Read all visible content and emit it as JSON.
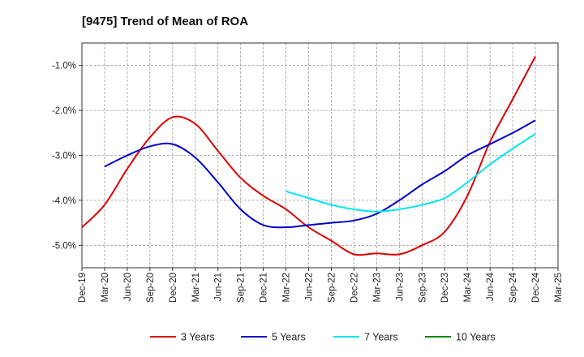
{
  "chart_data": {
    "type": "line",
    "title": "[9475]  Trend of Mean of ROA",
    "xlabel": "",
    "ylabel": "",
    "x": [
      "Dec-19",
      "Mar-20",
      "Jun-20",
      "Sep-20",
      "Dec-20",
      "Mar-21",
      "Jun-21",
      "Sep-21",
      "Dec-21",
      "Mar-22",
      "Jun-22",
      "Sep-22",
      "Dec-22",
      "Mar-23",
      "Jun-23",
      "Sep-23",
      "Dec-23",
      "Mar-24",
      "Jun-24",
      "Sep-24",
      "Dec-24",
      "Mar-25"
    ],
    "ylim": [
      -5.5,
      -0.5
    ],
    "yticks": [
      -1.0,
      -2.0,
      -3.0,
      -4.0,
      -5.0
    ],
    "ytick_labels": [
      "-1.0%",
      "-2.0%",
      "-3.0%",
      "-4.0%",
      "-5.0%"
    ],
    "grid": true,
    "legend_position": "bottom",
    "series": [
      {
        "name": "3 Years",
        "color": "#dd0000",
        "values": [
          -4.6,
          -4.1,
          -3.3,
          -2.6,
          -2.15,
          -2.3,
          -2.9,
          -3.5,
          -3.9,
          -4.2,
          -4.6,
          -4.9,
          -5.2,
          -5.18,
          -5.2,
          -5.0,
          -4.7,
          -3.9,
          -2.7,
          -1.75,
          -0.8,
          null
        ]
      },
      {
        "name": "5 Years",
        "color": "#0000cc",
        "values": [
          null,
          -3.25,
          -3.0,
          -2.8,
          -2.75,
          -3.05,
          -3.6,
          -4.2,
          -4.55,
          -4.6,
          -4.55,
          -4.5,
          -4.45,
          -4.3,
          -4.0,
          -3.65,
          -3.35,
          -3.0,
          -2.75,
          -2.5,
          -2.22,
          null
        ]
      },
      {
        "name": "7 Years",
        "color": "#00e5ee",
        "values": [
          null,
          null,
          null,
          null,
          null,
          null,
          null,
          null,
          null,
          -3.8,
          -3.95,
          -4.1,
          -4.2,
          -4.25,
          -4.2,
          -4.1,
          -3.95,
          -3.6,
          -3.2,
          -2.85,
          -2.52,
          null
        ]
      },
      {
        "name": "10 Years",
        "color": "#008800",
        "values": [
          null,
          null,
          null,
          null,
          null,
          null,
          null,
          null,
          null,
          null,
          null,
          null,
          null,
          null,
          null,
          null,
          null,
          null,
          null,
          null,
          null,
          null
        ]
      }
    ]
  }
}
